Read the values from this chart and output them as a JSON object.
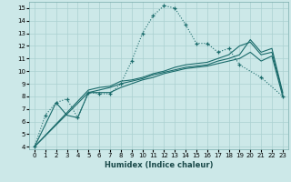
{
  "xlabel": "Humidex (Indice chaleur)",
  "bg_color": "#cce8e8",
  "grid_color": "#aad0d0",
  "line_color": "#1a6b6b",
  "xlim": [
    -0.5,
    23.5
  ],
  "ylim": [
    3.8,
    15.5
  ],
  "xticks": [
    0,
    1,
    2,
    3,
    4,
    5,
    6,
    7,
    8,
    9,
    10,
    11,
    12,
    13,
    14,
    15,
    16,
    17,
    18,
    19,
    20,
    21,
    22,
    23
  ],
  "yticks": [
    4,
    5,
    6,
    7,
    8,
    9,
    10,
    11,
    12,
    13,
    14,
    15
  ],
  "line1_x": [
    0,
    1,
    2,
    3,
    4,
    5,
    6,
    7,
    8,
    9,
    10,
    11,
    12,
    13,
    14,
    15,
    16,
    17,
    18,
    19,
    21,
    23
  ],
  "line1_y": [
    4.0,
    6.5,
    7.5,
    7.8,
    6.3,
    8.3,
    8.2,
    8.2,
    9.0,
    10.8,
    13.0,
    14.4,
    15.2,
    15.0,
    13.7,
    12.2,
    12.2,
    11.5,
    11.8,
    10.5,
    9.5,
    8.0
  ],
  "line2_x": [
    0,
    2,
    3,
    4,
    5,
    6,
    7,
    8,
    9,
    10,
    11,
    12,
    13,
    14,
    15,
    16,
    17,
    18,
    19,
    20,
    21,
    22,
    23
  ],
  "line2_y": [
    4.0,
    7.5,
    6.5,
    6.3,
    8.3,
    8.3,
    8.3,
    8.7,
    9.0,
    9.3,
    9.5,
    9.8,
    10.0,
    10.2,
    10.3,
    10.4,
    10.6,
    10.8,
    11.0,
    11.5,
    10.8,
    11.2,
    8.0
  ],
  "line3_x": [
    0,
    5,
    6,
    7,
    8,
    9,
    10,
    11,
    12,
    13,
    14,
    15,
    16,
    17,
    18,
    19,
    20,
    21,
    22,
    23
  ],
  "line3_y": [
    4.0,
    8.5,
    8.7,
    8.8,
    9.2,
    9.3,
    9.5,
    9.8,
    10.0,
    10.3,
    10.5,
    10.6,
    10.7,
    11.0,
    11.3,
    12.0,
    12.3,
    11.3,
    11.5,
    8.2
  ],
  "line4_x": [
    0,
    5,
    6,
    7,
    8,
    9,
    10,
    11,
    12,
    13,
    14,
    15,
    16,
    17,
    18,
    19,
    20,
    21,
    22,
    23
  ],
  "line4_y": [
    4.0,
    8.3,
    8.5,
    8.7,
    9.0,
    9.2,
    9.4,
    9.7,
    9.9,
    10.1,
    10.3,
    10.4,
    10.5,
    10.8,
    11.0,
    11.3,
    12.5,
    11.5,
    11.8,
    8.3
  ]
}
